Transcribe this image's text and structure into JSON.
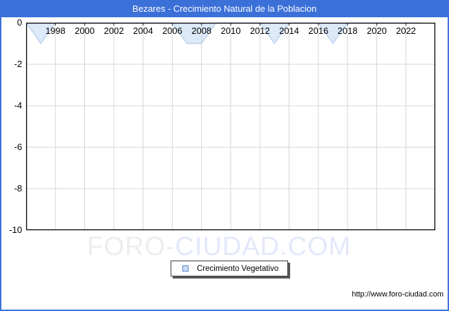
{
  "window": {
    "title": "Bezares - Crecimiento Natural de la Poblacion"
  },
  "chart_data": {
    "type": "area",
    "title": "Bezares - Crecimiento Natural de la Poblacion",
    "x": [
      1996,
      1997,
      1998,
      1999,
      2000,
      2001,
      2002,
      2003,
      2004,
      2005,
      2006,
      2007,
      2008,
      2009,
      2010,
      2011,
      2012,
      2013,
      2014,
      2015,
      2016,
      2017,
      2018,
      2019,
      2020,
      2021,
      2022,
      2023
    ],
    "series": [
      {
        "name": "Crecimiento Vegetativo",
        "values": [
          0,
          -1,
          0,
          0,
          0,
          0,
          0,
          0,
          0,
          0,
          0,
          -1,
          -1,
          0,
          0,
          0,
          0,
          -1,
          0,
          0,
          0,
          -1,
          0,
          0,
          0,
          0,
          0,
          0
        ]
      }
    ],
    "xlabel": "",
    "ylabel": "",
    "xlim": [
      1996,
      2024
    ],
    "ylim": [
      -10,
      0
    ],
    "xticks": [
      1998,
      2000,
      2002,
      2004,
      2006,
      2008,
      2010,
      2012,
      2014,
      2016,
      2018,
      2020,
      2022
    ],
    "yticks": [
      0,
      -2,
      -4,
      -6,
      -8,
      -10
    ],
    "grid": true,
    "legend_position": "bottom-center",
    "colors": {
      "frame_blue": "#3b70d9",
      "area_fill": "#dce9f8",
      "area_stroke": "#a9c4e6",
      "gridline": "#d6d6d6",
      "axis_border": "#000000",
      "swatch_fill": "#c6ddf4",
      "swatch_border": "#5b87c5"
    }
  },
  "legend": {
    "label": "Crecimiento Vegetativo"
  },
  "watermark": {
    "part1": "FORO-",
    "part2": "CIUDAD.COM"
  },
  "footer": {
    "url": "http://www.foro-ciudad.com"
  }
}
